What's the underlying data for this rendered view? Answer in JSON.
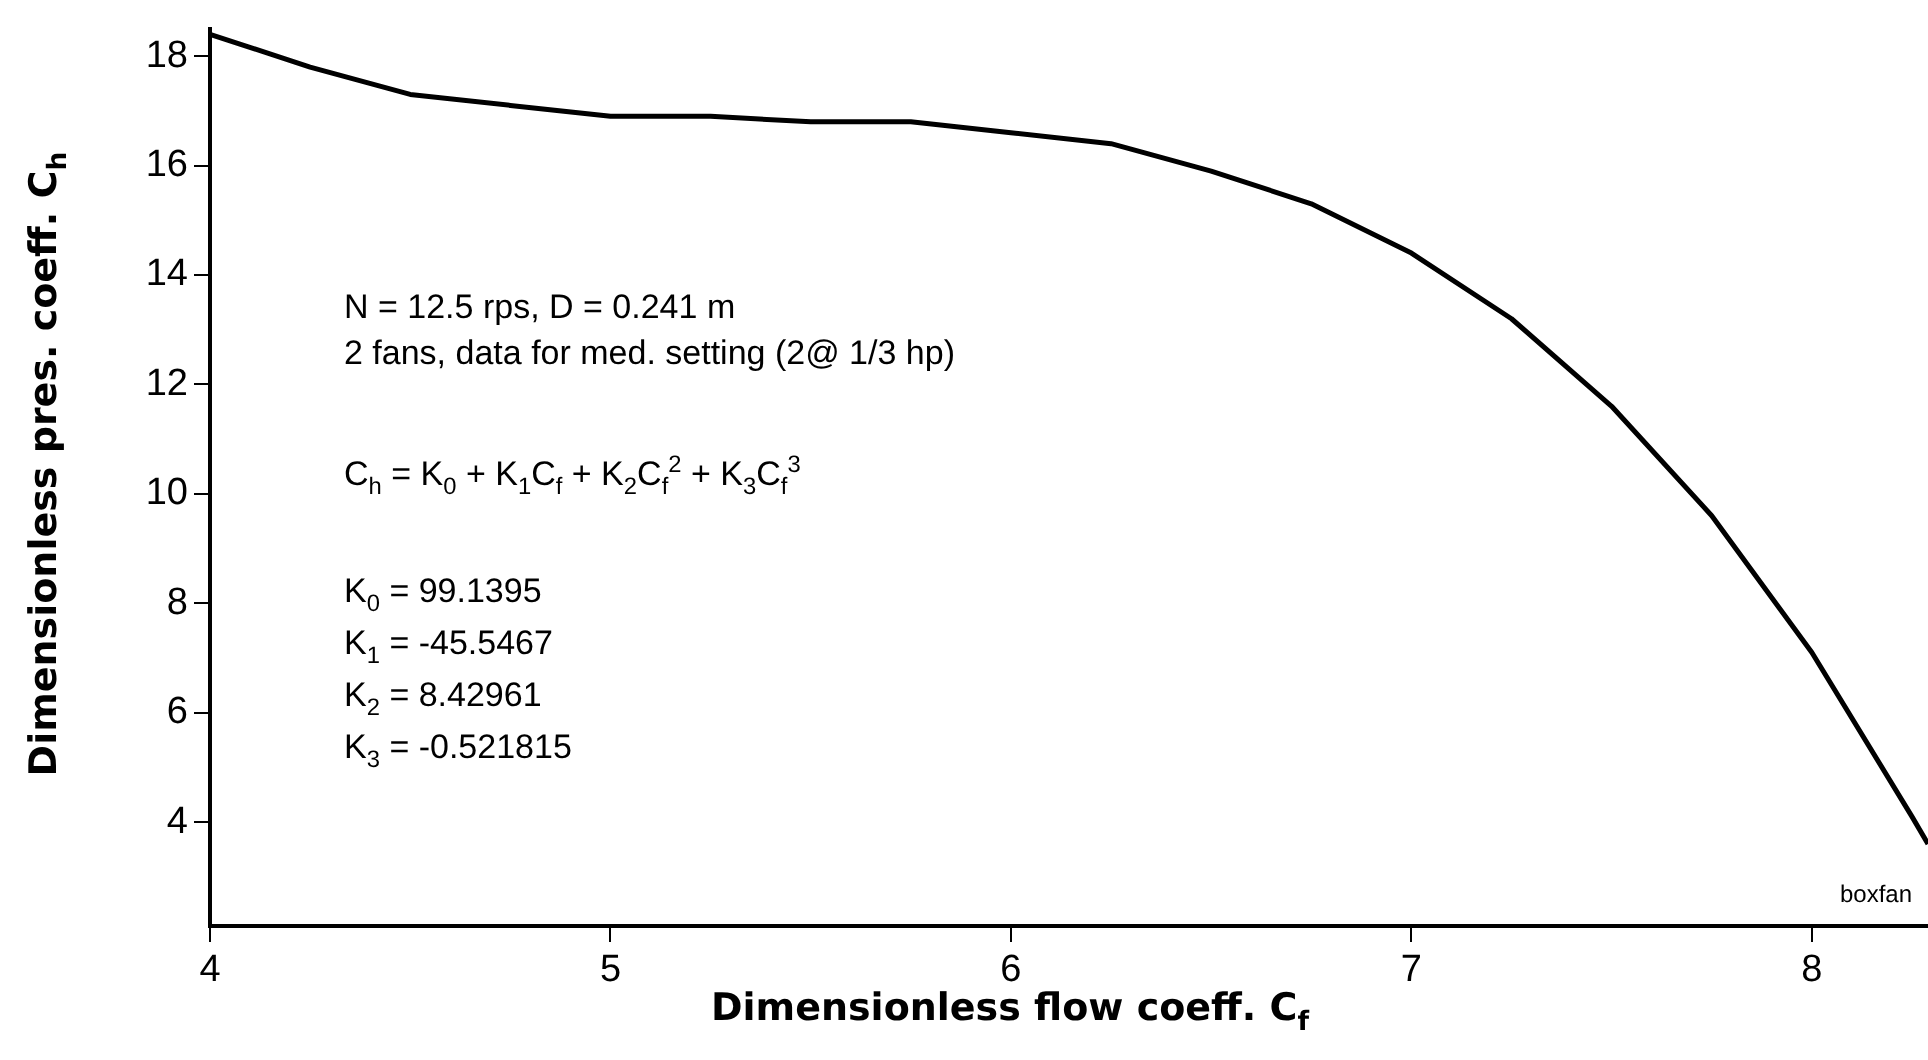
{
  "chart_data": {
    "type": "line",
    "xlabel": "Dimensionless  flow  coeff. C$_{f}$",
    "ylabel": "Dimensionless  pres.  coeff. C$_{h}$",
    "x": [
      4,
      4.25,
      4.5,
      4.75,
      5,
      5.25,
      5.5,
      5.75,
      6,
      6.25,
      6.5,
      6.75,
      7,
      7.25,
      7.5,
      7.75,
      8,
      8.25,
      8.29
    ],
    "values": [
      18.4,
      17.8,
      17.3,
      17.1,
      16.9,
      16.9,
      16.8,
      16.8,
      16.6,
      16.4,
      15.9,
      15.3,
      14.4,
      13.2,
      11.6,
      9.6,
      7.1,
      4.1,
      3.6
    ],
    "color": "#000000",
    "marker": "none",
    "line_style": "solid",
    "grid": false,
    "legend": false,
    "xlim": [
      4,
      8.29
    ],
    "xticks": [
      4,
      5,
      6,
      7,
      8
    ],
    "ylim": [
      2.1,
      18.5
    ],
    "yticks": [
      4,
      6,
      8,
      10,
      12,
      14,
      16,
      18
    ],
    "annotations": [
      "N = 12.5 rps, D = 0.241 m",
      "2 fans, data for med. setting (2@ 1/3 hp)",
      "C$_{h}$ = K$_{0}$ + K$_{1}$C$_{f}$ + K$_{2}$C$_{f}$$^{2}$ + K$_{3}$C$_{f}$$^{3}$",
      "K$_{0}$ = 99.1395",
      "K$_{1}$ =  -45.5467",
      "K$_{2}$ = 8.42961",
      "K$_{3}$ = -0.521815",
      "boxfan"
    ]
  }
}
